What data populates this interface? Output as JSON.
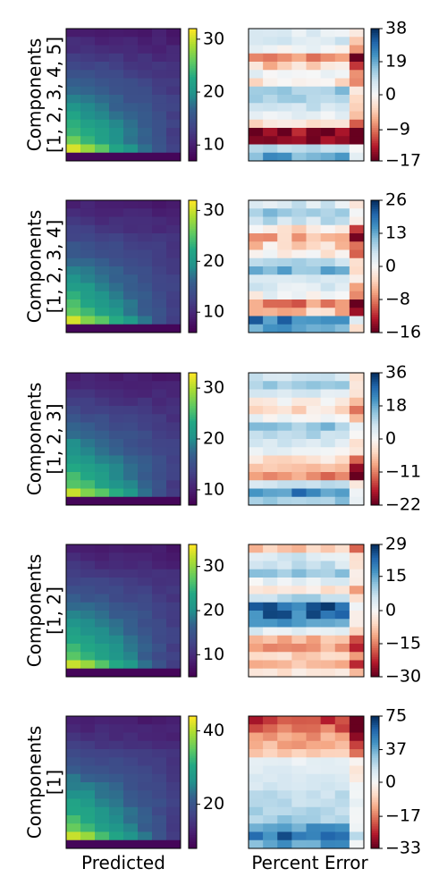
{
  "figure": {
    "xlabels": [
      "Predicted",
      "Percent Error"
    ],
    "grid_cols": 8,
    "grid_rows": 16
  },
  "chart_data": [
    {
      "type": "heatmap",
      "row_label": [
        "Components",
        "[1, 2, 3, 4, 5]"
      ],
      "predicted": {
        "colormap": "viridis",
        "vmin": 7,
        "vmax": 32,
        "ticks": [
          10,
          20,
          30
        ],
        "tick_labels": [
          "10",
          "20",
          "30"
        ]
      },
      "error": {
        "colormap": "RdBu",
        "vmin": -17,
        "vmax": 38,
        "ticks": [
          38,
          19,
          0,
          -9,
          -17
        ],
        "tick_labels": [
          "38",
          "19",
          "0",
          "−9",
          "−17"
        ],
        "row_means": [
          4,
          6,
          2,
          -8,
          -4,
          2,
          -2,
          14,
          12,
          8,
          3,
          -3,
          -16,
          -14,
          10,
          20
        ]
      }
    },
    {
      "type": "heatmap",
      "row_label": [
        "Components",
        "[1, 2, 3, 4]"
      ],
      "predicted": {
        "colormap": "viridis",
        "vmin": 6,
        "vmax": 32,
        "ticks": [
          10,
          20,
          30
        ],
        "tick_labels": [
          "10",
          "20",
          "30"
        ]
      },
      "error": {
        "colormap": "RdBu",
        "vmin": -16,
        "vmax": 26,
        "ticks": [
          26,
          13,
          0,
          -8,
          -16
        ],
        "tick_labels": [
          "26",
          "13",
          "0",
          "−8",
          "−16"
        ],
        "row_means": [
          4,
          10,
          6,
          -2,
          -5,
          -3,
          -1,
          8,
          12,
          6,
          4,
          1,
          -8,
          -4,
          18,
          14
        ]
      }
    },
    {
      "type": "heatmap",
      "row_label": [
        "Components",
        "[1, 2, 3]"
      ],
      "predicted": {
        "colormap": "viridis",
        "vmin": 7,
        "vmax": 33,
        "ticks": [
          10,
          20,
          30
        ],
        "tick_labels": [
          "10",
          "20",
          "30"
        ]
      },
      "error": {
        "colormap": "RdBu",
        "vmin": -22,
        "vmax": 36,
        "ticks": [
          36,
          18,
          0,
          -11,
          -22
        ],
        "tick_labels": [
          "36",
          "18",
          "0",
          "−11",
          "−22"
        ],
        "row_means": [
          6,
          12,
          6,
          0,
          -3,
          2,
          14,
          10,
          6,
          2,
          -4,
          -8,
          -10,
          8,
          24,
          14
        ]
      }
    },
    {
      "type": "heatmap",
      "row_label": [
        "Components",
        "[1, 2]"
      ],
      "predicted": {
        "colormap": "viridis",
        "vmin": 5,
        "vmax": 35,
        "ticks": [
          10,
          20,
          30
        ],
        "tick_labels": [
          "10",
          "20",
          "30"
        ]
      },
      "error": {
        "colormap": "RdBu",
        "vmin": -30,
        "vmax": 29,
        "ticks": [
          29,
          15,
          0,
          -15,
          -30
        ],
        "tick_labels": [
          "29",
          "15",
          "0",
          "−15",
          "−30"
        ],
        "row_means": [
          -8,
          4,
          6,
          10,
          2,
          -4,
          8,
          24,
          22,
          16,
          4,
          -10,
          -12,
          -6,
          -10,
          -4
        ]
      }
    },
    {
      "type": "heatmap",
      "row_label": [
        "Components",
        "[1]"
      ],
      "predicted": {
        "colormap": "viridis",
        "vmin": 8,
        "vmax": 44,
        "ticks": [
          20,
          40
        ],
        "tick_labels": [
          "20",
          "40"
        ]
      },
      "error": {
        "colormap": "RdBu",
        "vmin": -33,
        "vmax": 75,
        "ticks": [
          75,
          37,
          0,
          -17,
          -33
        ],
        "tick_labels": [
          "75",
          "37",
          "0",
          "−17",
          "−33"
        ],
        "row_means": [
          -26,
          -20,
          -14,
          -12,
          -8,
          6,
          10,
          12,
          14,
          18,
          20,
          22,
          26,
          40,
          55,
          40
        ]
      }
    }
  ]
}
